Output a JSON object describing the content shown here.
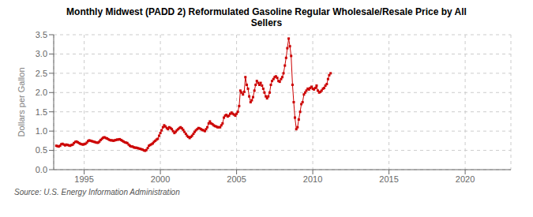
{
  "chart_data": {
    "type": "line",
    "title": "Monthly Midwest (PADD 2) Reformulated Gasoline Regular Wholesale/Resale Price by All\nSellers",
    "ylabel": "Dollars per Gallon",
    "source": "Source: U.S. Energy Information Administration",
    "color": "#CC0000",
    "marker": "square",
    "grid": true,
    "xlim": [
      1993.0,
      2023.0
    ],
    "ylim": [
      0.0,
      3.5
    ],
    "xticks": [
      1995,
      2000,
      2005,
      2010,
      2015,
      2020
    ],
    "yticks": [
      {
        "value": 0.0,
        "label": "0.0"
      },
      0.5,
      {
        "value": 1.0,
        "label": "1.0"
      },
      1.5,
      {
        "value": 2.0,
        "label": "2.0"
      },
      2.5,
      {
        "value": 3.0,
        "label": "3.0"
      },
      3.5
    ],
    "x": [
      1993.17,
      1993.25,
      1993.33,
      1993.42,
      1993.5,
      1993.58,
      1993.67,
      1993.75,
      1993.83,
      1993.92,
      1994.0,
      1994.08,
      1994.17,
      1994.25,
      1994.33,
      1994.42,
      1994.5,
      1994.58,
      1994.67,
      1994.75,
      1994.83,
      1994.92,
      1995.0,
      1995.08,
      1995.17,
      1995.25,
      1995.33,
      1995.42,
      1995.5,
      1995.58,
      1995.67,
      1995.75,
      1995.83,
      1995.92,
      1996.0,
      1996.08,
      1996.17,
      1996.25,
      1996.33,
      1996.42,
      1996.5,
      1996.58,
      1996.67,
      1996.75,
      1996.83,
      1996.92,
      1997.0,
      1997.08,
      1997.17,
      1997.25,
      1997.33,
      1997.42,
      1997.5,
      1997.58,
      1997.67,
      1997.75,
      1997.83,
      1997.92,
      1998.0,
      1998.08,
      1998.17,
      1998.25,
      1998.33,
      1998.42,
      1998.5,
      1998.58,
      1998.67,
      1998.75,
      1998.83,
      1998.92,
      1999.0,
      1999.08,
      1999.17,
      1999.25,
      1999.33,
      1999.42,
      1999.5,
      1999.58,
      1999.67,
      1999.75,
      1999.83,
      1999.92,
      2000.0,
      2000.08,
      2000.17,
      2000.25,
      2000.33,
      2000.42,
      2000.5,
      2000.58,
      2000.67,
      2000.75,
      2000.83,
      2000.92,
      2001.0,
      2001.08,
      2001.17,
      2001.25,
      2001.33,
      2001.42,
      2001.5,
      2001.58,
      2001.67,
      2001.75,
      2001.83,
      2001.92,
      2002.0,
      2002.08,
      2002.17,
      2002.25,
      2002.33,
      2002.42,
      2002.5,
      2002.58,
      2002.67,
      2002.75,
      2002.83,
      2002.92,
      2003.0,
      2003.08,
      2003.17,
      2003.25,
      2003.33,
      2003.42,
      2003.5,
      2003.58,
      2003.67,
      2003.75,
      2003.83,
      2003.92,
      2004.0,
      2004.08,
      2004.17,
      2004.25,
      2004.33,
      2004.42,
      2004.5,
      2004.58,
      2004.67,
      2004.75,
      2004.83,
      2004.92,
      2005.0,
      2005.08,
      2005.17,
      2005.25,
      2005.33,
      2005.42,
      2005.5,
      2005.58,
      2005.67,
      2005.75,
      2005.83,
      2005.92,
      2006.0,
      2006.08,
      2006.17,
      2006.25,
      2006.33,
      2006.42,
      2006.5,
      2006.58,
      2006.67,
      2006.75,
      2006.83,
      2006.92,
      2007.0,
      2007.08,
      2007.17,
      2007.25,
      2007.33,
      2007.42,
      2007.5,
      2007.58,
      2007.67,
      2007.75,
      2007.83,
      2007.92,
      2008.0,
      2008.08,
      2008.17,
      2008.25,
      2008.33,
      2008.42,
      2008.5,
      2008.58,
      2008.67,
      2008.75,
      2008.83,
      2008.92,
      2009.0,
      2009.08,
      2009.17,
      2009.25,
      2009.33,
      2009.42,
      2009.5,
      2009.58,
      2009.67,
      2009.75,
      2009.83,
      2009.92,
      2010.0,
      2010.08,
      2010.17,
      2010.25,
      2010.33,
      2010.42,
      2010.5,
      2010.58,
      2010.67,
      2010.75,
      2010.83,
      2010.92,
      2011.0,
      2011.08,
      2011.17
    ],
    "values": [
      0.62,
      0.61,
      0.6,
      0.62,
      0.66,
      0.67,
      0.65,
      0.63,
      0.65,
      0.64,
      0.63,
      0.62,
      0.64,
      0.65,
      0.69,
      0.72,
      0.73,
      0.71,
      0.69,
      0.67,
      0.66,
      0.65,
      0.66,
      0.67,
      0.7,
      0.74,
      0.76,
      0.75,
      0.74,
      0.73,
      0.72,
      0.71,
      0.7,
      0.7,
      0.73,
      0.77,
      0.8,
      0.83,
      0.84,
      0.82,
      0.81,
      0.79,
      0.77,
      0.76,
      0.76,
      0.75,
      0.76,
      0.77,
      0.78,
      0.78,
      0.79,
      0.77,
      0.75,
      0.73,
      0.71,
      0.7,
      0.69,
      0.65,
      0.62,
      0.6,
      0.6,
      0.58,
      0.57,
      0.57,
      0.56,
      0.55,
      0.54,
      0.53,
      0.52,
      0.5,
      0.49,
      0.51,
      0.56,
      0.62,
      0.64,
      0.66,
      0.68,
      0.72,
      0.75,
      0.78,
      0.8,
      0.88,
      0.95,
      1.02,
      1.1,
      1.15,
      1.12,
      1.08,
      1.05,
      1.1,
      1.08,
      1.05,
      1.0,
      0.95,
      0.98,
      1.02,
      1.05,
      1.08,
      1.1,
      1.07,
      1.03,
      0.98,
      0.93,
      0.88,
      0.85,
      0.82,
      0.85,
      0.88,
      0.93,
      0.98,
      1.02,
      1.05,
      1.08,
      1.07,
      1.05,
      1.03,
      1.02,
      1.0,
      1.05,
      1.1,
      1.2,
      1.25,
      1.2,
      1.18,
      1.15,
      1.13,
      1.12,
      1.1,
      1.1,
      1.1,
      1.15,
      1.2,
      1.35,
      1.4,
      1.42,
      1.38,
      1.4,
      1.45,
      1.48,
      1.45,
      1.43,
      1.4,
      1.45,
      1.5,
      1.65,
      2.05,
      2.0,
      1.95,
      2.02,
      2.4,
      2.2,
      2.1,
      1.9,
      1.75,
      1.8,
      1.88,
      2.05,
      2.2,
      2.3,
      2.25,
      2.2,
      2.25,
      2.18,
      2.1,
      2.0,
      1.9,
      1.85,
      1.9,
      2.0,
      2.2,
      2.3,
      2.35,
      2.4,
      2.42,
      2.38,
      2.3,
      2.28,
      2.35,
      2.4,
      2.5,
      2.7,
      2.9,
      3.15,
      3.4,
      3.2,
      2.95,
      2.2,
      1.75,
      1.35,
      1.05,
      1.1,
      1.3,
      1.5,
      1.7,
      1.75,
      1.95,
      2.0,
      2.05,
      2.1,
      2.08,
      2.12,
      2.15,
      2.1,
      2.08,
      2.12,
      2.18,
      2.05,
      2.0,
      2.02,
      2.05,
      2.1,
      2.12,
      2.18,
      2.22,
      2.35,
      2.45,
      2.5
    ]
  }
}
